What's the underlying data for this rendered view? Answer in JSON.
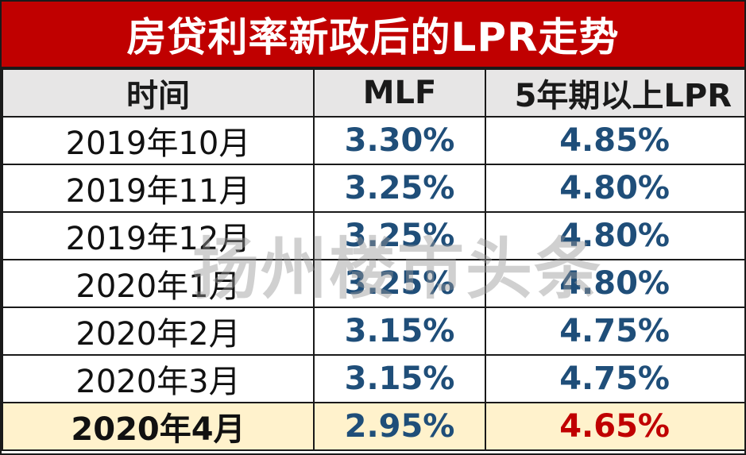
{
  "title": "房贷利率新政后的LPR走势",
  "columns": [
    "时间",
    "MLF",
    "5年期以上LPR"
  ],
  "rows": [
    {
      "date": "2019年10月",
      "mlf": "3.30%",
      "lpr": "4.85%"
    },
    {
      "date": "2019年11月",
      "mlf": "3.25%",
      "lpr": "4.80%"
    },
    {
      "date": "2019年12月",
      "mlf": "3.25%",
      "lpr": "4.80%"
    },
    {
      "date": "2020年1月",
      "mlf": "3.25%",
      "lpr": "4.80%"
    },
    {
      "date": "2020年2月",
      "mlf": "3.15%",
      "lpr": "4.75%"
    },
    {
      "date": "2020年3月",
      "mlf": "3.15%",
      "lpr": "4.75%"
    },
    {
      "date": "2020年4月",
      "mlf": "2.95%",
      "lpr": "4.65%"
    }
  ],
  "watermark": "扬州楼市头条",
  "colors": {
    "title_bg": "#c00000",
    "header_bg": "#e7e6e6",
    "value_blue": "#1f4e79",
    "highlight_bg": "#fff2cc",
    "highlight_red": "#c00000"
  }
}
